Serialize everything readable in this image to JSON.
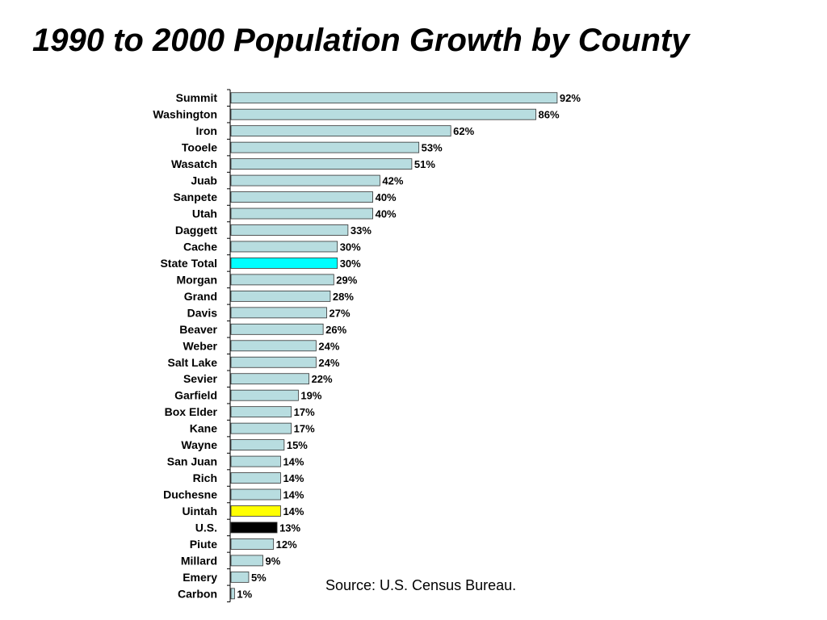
{
  "header": {
    "title": "1990 to 2000 Population Growth by County"
  },
  "footer": {
    "source": "Source: U.S. Census Bureau."
  },
  "colors": {
    "bar_default": "#b8dde0",
    "bar_state_total": "#00ffff",
    "bar_uintah": "#ffff00",
    "bar_us": "#000000",
    "bar_stroke": "#333333"
  },
  "chart_data": {
    "type": "bar",
    "orientation": "horizontal",
    "title": "1990 to 2000 Population Growth by County",
    "xlabel": "",
    "ylabel": "",
    "xlim": [
      0,
      100
    ],
    "grid": false,
    "legend": "none",
    "value_suffix": "%",
    "categories": [
      "Summit",
      "Washington",
      "Iron",
      "Tooele",
      "Wasatch",
      "Juab",
      "Sanpete",
      "Utah",
      "Daggett",
      "Cache",
      "State Total",
      "Morgan",
      "Grand",
      "Davis",
      "Beaver",
      "Weber",
      "Salt Lake",
      "Sevier",
      "Garfield",
      "Box Elder",
      "Kane",
      "Wayne",
      "San Juan",
      "Rich",
      "Duchesne",
      "Uintah",
      "U.S.",
      "Piute",
      "Millard",
      "Emery",
      "Carbon"
    ],
    "values": [
      92,
      86,
      62,
      53,
      51,
      42,
      40,
      40,
      33,
      30,
      30,
      29,
      28,
      27,
      26,
      24,
      24,
      22,
      19,
      17,
      17,
      15,
      14,
      14,
      14,
      14,
      13,
      12,
      9,
      5,
      1
    ],
    "highlights": {
      "State Total": "#00ffff",
      "Uintah": "#ffff00",
      "U.S.": "#000000"
    }
  }
}
